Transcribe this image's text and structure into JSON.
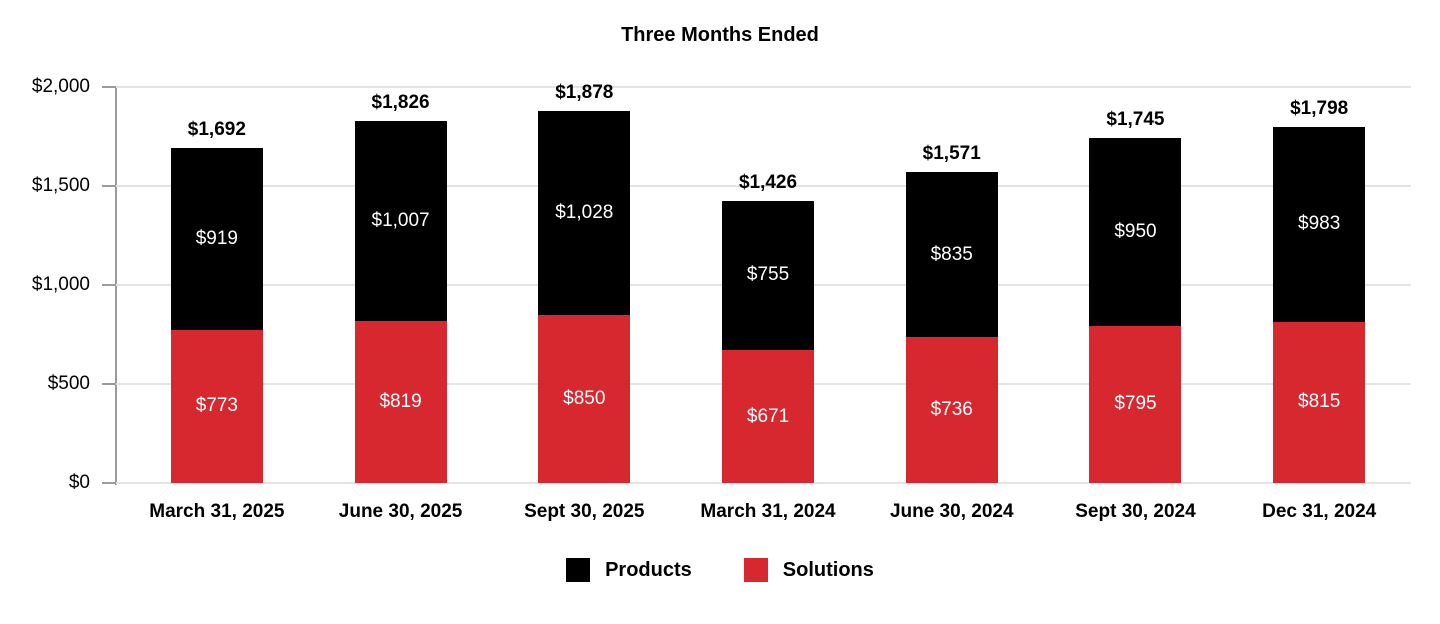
{
  "chart_data": {
    "type": "bar",
    "stacked": true,
    "title": "Three Months Ended",
    "categories": [
      "March 31, 2025",
      "June 30, 2025",
      "Sept 30, 2025",
      "March 31, 2024",
      "June 30, 2024",
      "Sept 30, 2024",
      "Dec 31, 2024"
    ],
    "series": [
      {
        "name": "Products",
        "color": "#000000",
        "label_color": "#ffffff",
        "values": [
          919,
          1007,
          1028,
          755,
          835,
          950,
          983
        ],
        "labels": [
          "$919",
          "$1,007",
          "$1,028",
          "$755",
          "$835",
          "$950",
          "$983"
        ]
      },
      {
        "name": "Solutions",
        "color": "#d7282f",
        "label_color": "#ffffff",
        "values": [
          773,
          819,
          850,
          671,
          736,
          795,
          815
        ],
        "labels": [
          "$773",
          "$819",
          "$850",
          "$671",
          "$736",
          "$795",
          "$815"
        ]
      }
    ],
    "totals": [
      1692,
      1826,
      1878,
      1426,
      1571,
      1745,
      1798
    ],
    "total_labels": [
      "$1,692",
      "$1,826",
      "$1,878",
      "$1,426",
      "$1,571",
      "$1,745",
      "$1,798"
    ],
    "ylim": [
      0,
      2000
    ],
    "yticks": [
      {
        "value": 0,
        "label": "$0"
      },
      {
        "value": 500,
        "label": "$500"
      },
      {
        "value": 1000,
        "label": "$1,000"
      },
      {
        "value": 1500,
        "label": "$1,500"
      },
      {
        "value": 2000,
        "label": "$2,000"
      }
    ],
    "grid": true,
    "legend_position": "bottom",
    "style": {
      "grid_color": "#e4e4e4",
      "axis_color": "#9b9b9b",
      "text_color": "#000000"
    }
  }
}
